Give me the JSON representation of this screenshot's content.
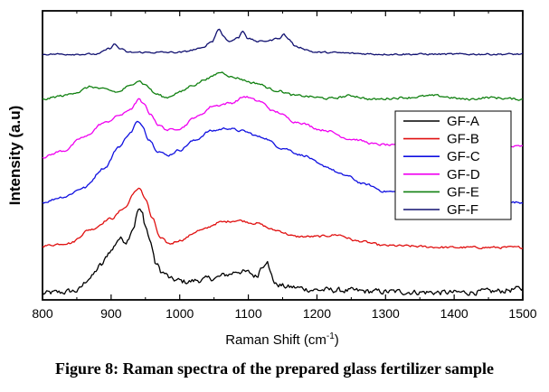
{
  "chart_data": {
    "type": "line",
    "title": "",
    "xlabel": "Raman Shift (cm",
    "xlabel_sup": "-1",
    "xlabel_tail": ")",
    "ylabel": "Intensity (a.u)",
    "xlim": [
      800,
      1500
    ],
    "xticks": [
      "800",
      "900",
      "1000",
      "1100",
      "1200",
      "1300",
      "1400",
      "1500"
    ],
    "yticks_labeled": false,
    "legend_position": "right",
    "series": [
      {
        "name": "GF-A",
        "color": "#000000",
        "noise": 5,
        "points": [
          [
            800,
            7
          ],
          [
            820,
            8
          ],
          [
            850,
            10
          ],
          [
            870,
            25
          ],
          [
            885,
            38
          ],
          [
            900,
            55
          ],
          [
            912,
            68
          ],
          [
            922,
            65
          ],
          [
            932,
            80
          ],
          [
            940,
            100
          ],
          [
            945,
            96
          ],
          [
            950,
            82
          ],
          [
            957,
            65
          ],
          [
            965,
            40
          ],
          [
            975,
            30
          ],
          [
            990,
            22
          ],
          [
            1010,
            20
          ],
          [
            1030,
            22
          ],
          [
            1050,
            24
          ],
          [
            1070,
            28
          ],
          [
            1085,
            32
          ],
          [
            1100,
            30
          ],
          [
            1112,
            26
          ],
          [
            1120,
            38
          ],
          [
            1127,
            44
          ],
          [
            1132,
            30
          ],
          [
            1140,
            17
          ],
          [
            1160,
            14
          ],
          [
            1200,
            11
          ],
          [
            1300,
            9
          ],
          [
            1400,
            8
          ],
          [
            1450,
            9
          ],
          [
            1500,
            12
          ]
        ]
      },
      {
        "name": "GF-B",
        "color": "#e01010",
        "noise": 2,
        "points": [
          [
            800,
            60
          ],
          [
            840,
            63
          ],
          [
            870,
            78
          ],
          [
            900,
            90
          ],
          [
            920,
            102
          ],
          [
            935,
            120
          ],
          [
            942,
            123
          ],
          [
            950,
            112
          ],
          [
            960,
            90
          ],
          [
            972,
            68
          ],
          [
            985,
            62
          ],
          [
            1000,
            66
          ],
          [
            1030,
            77
          ],
          [
            1060,
            86
          ],
          [
            1085,
            88
          ],
          [
            1110,
            85
          ],
          [
            1140,
            77
          ],
          [
            1170,
            70
          ],
          [
            1200,
            70
          ],
          [
            1230,
            72
          ],
          [
            1260,
            65
          ],
          [
            1300,
            60
          ],
          [
            1400,
            58
          ],
          [
            1500,
            58
          ]
        ]
      },
      {
        "name": "GF-C",
        "color": "#1010e0",
        "noise": 2,
        "points": [
          [
            800,
            108
          ],
          [
            830,
            114
          ],
          [
            860,
            124
          ],
          [
            890,
            146
          ],
          [
            912,
            170
          ],
          [
            928,
            185
          ],
          [
            938,
            197
          ],
          [
            945,
            193
          ],
          [
            955,
            178
          ],
          [
            968,
            165
          ],
          [
            982,
            160
          ],
          [
            1000,
            166
          ],
          [
            1020,
            176
          ],
          [
            1045,
            187
          ],
          [
            1070,
            190
          ],
          [
            1090,
            187
          ],
          [
            1120,
            180
          ],
          [
            1150,
            168
          ],
          [
            1180,
            160
          ],
          [
            1210,
            148
          ],
          [
            1240,
            138
          ],
          [
            1270,
            128
          ],
          [
            1300,
            120
          ],
          [
            1350,
            116
          ],
          [
            1400,
            112
          ],
          [
            1450,
            108
          ],
          [
            1500,
            108
          ]
        ]
      },
      {
        "name": "GF-D",
        "color": "#f000f0",
        "noise": 2,
        "points": [
          [
            800,
            158
          ],
          [
            830,
            165
          ],
          [
            860,
            180
          ],
          [
            890,
            196
          ],
          [
            915,
            205
          ],
          [
            930,
            212
          ],
          [
            940,
            222
          ],
          [
            948,
            216
          ],
          [
            958,
            205
          ],
          [
            970,
            193
          ],
          [
            983,
            188
          ],
          [
            1000,
            190
          ],
          [
            1025,
            203
          ],
          [
            1050,
            215
          ],
          [
            1075,
            218
          ],
          [
            1095,
            225
          ],
          [
            1115,
            220
          ],
          [
            1140,
            208
          ],
          [
            1170,
            197
          ],
          [
            1210,
            188
          ],
          [
            1250,
            178
          ],
          [
            1290,
            172
          ],
          [
            1330,
            170
          ],
          [
            1400,
            168
          ],
          [
            1450,
            168
          ],
          [
            1500,
            170
          ]
        ]
      },
      {
        "name": "GF-E",
        "color": "#108010",
        "noise": 2,
        "points": [
          [
            800,
            222
          ],
          [
            830,
            226
          ],
          [
            850,
            230
          ],
          [
            870,
            236
          ],
          [
            890,
            233
          ],
          [
            910,
            230
          ],
          [
            925,
            236
          ],
          [
            940,
            243
          ],
          [
            950,
            238
          ],
          [
            965,
            228
          ],
          [
            980,
            224
          ],
          [
            1000,
            230
          ],
          [
            1020,
            238
          ],
          [
            1040,
            245
          ],
          [
            1060,
            252
          ],
          [
            1080,
            246
          ],
          [
            1110,
            240
          ],
          [
            1140,
            232
          ],
          [
            1170,
            226
          ],
          [
            1220,
            223
          ],
          [
            1250,
            226
          ],
          [
            1280,
            222
          ],
          [
            1330,
            224
          ],
          [
            1370,
            226
          ],
          [
            1420,
            222
          ],
          [
            1450,
            224
          ],
          [
            1500,
            222
          ]
        ]
      },
      {
        "name": "GF-F",
        "color": "#101070",
        "noise": 1.5,
        "points": [
          [
            800,
            272
          ],
          [
            880,
            272
          ],
          [
            897,
            278
          ],
          [
            905,
            283
          ],
          [
            913,
            278
          ],
          [
            925,
            274
          ],
          [
            950,
            274
          ],
          [
            1000,
            274
          ],
          [
            1030,
            278
          ],
          [
            1047,
            286
          ],
          [
            1057,
            300
          ],
          [
            1064,
            292
          ],
          [
            1072,
            286
          ],
          [
            1085,
            290
          ],
          [
            1092,
            298
          ],
          [
            1100,
            289
          ],
          [
            1115,
            286
          ],
          [
            1130,
            287
          ],
          [
            1145,
            290
          ],
          [
            1152,
            294
          ],
          [
            1158,
            289
          ],
          [
            1170,
            280
          ],
          [
            1200,
            274
          ],
          [
            1300,
            272
          ],
          [
            1400,
            272
          ],
          [
            1500,
            272
          ]
        ]
      }
    ]
  },
  "caption": "Figure 8: Raman spectra of the prepared glass fertilizer sample"
}
